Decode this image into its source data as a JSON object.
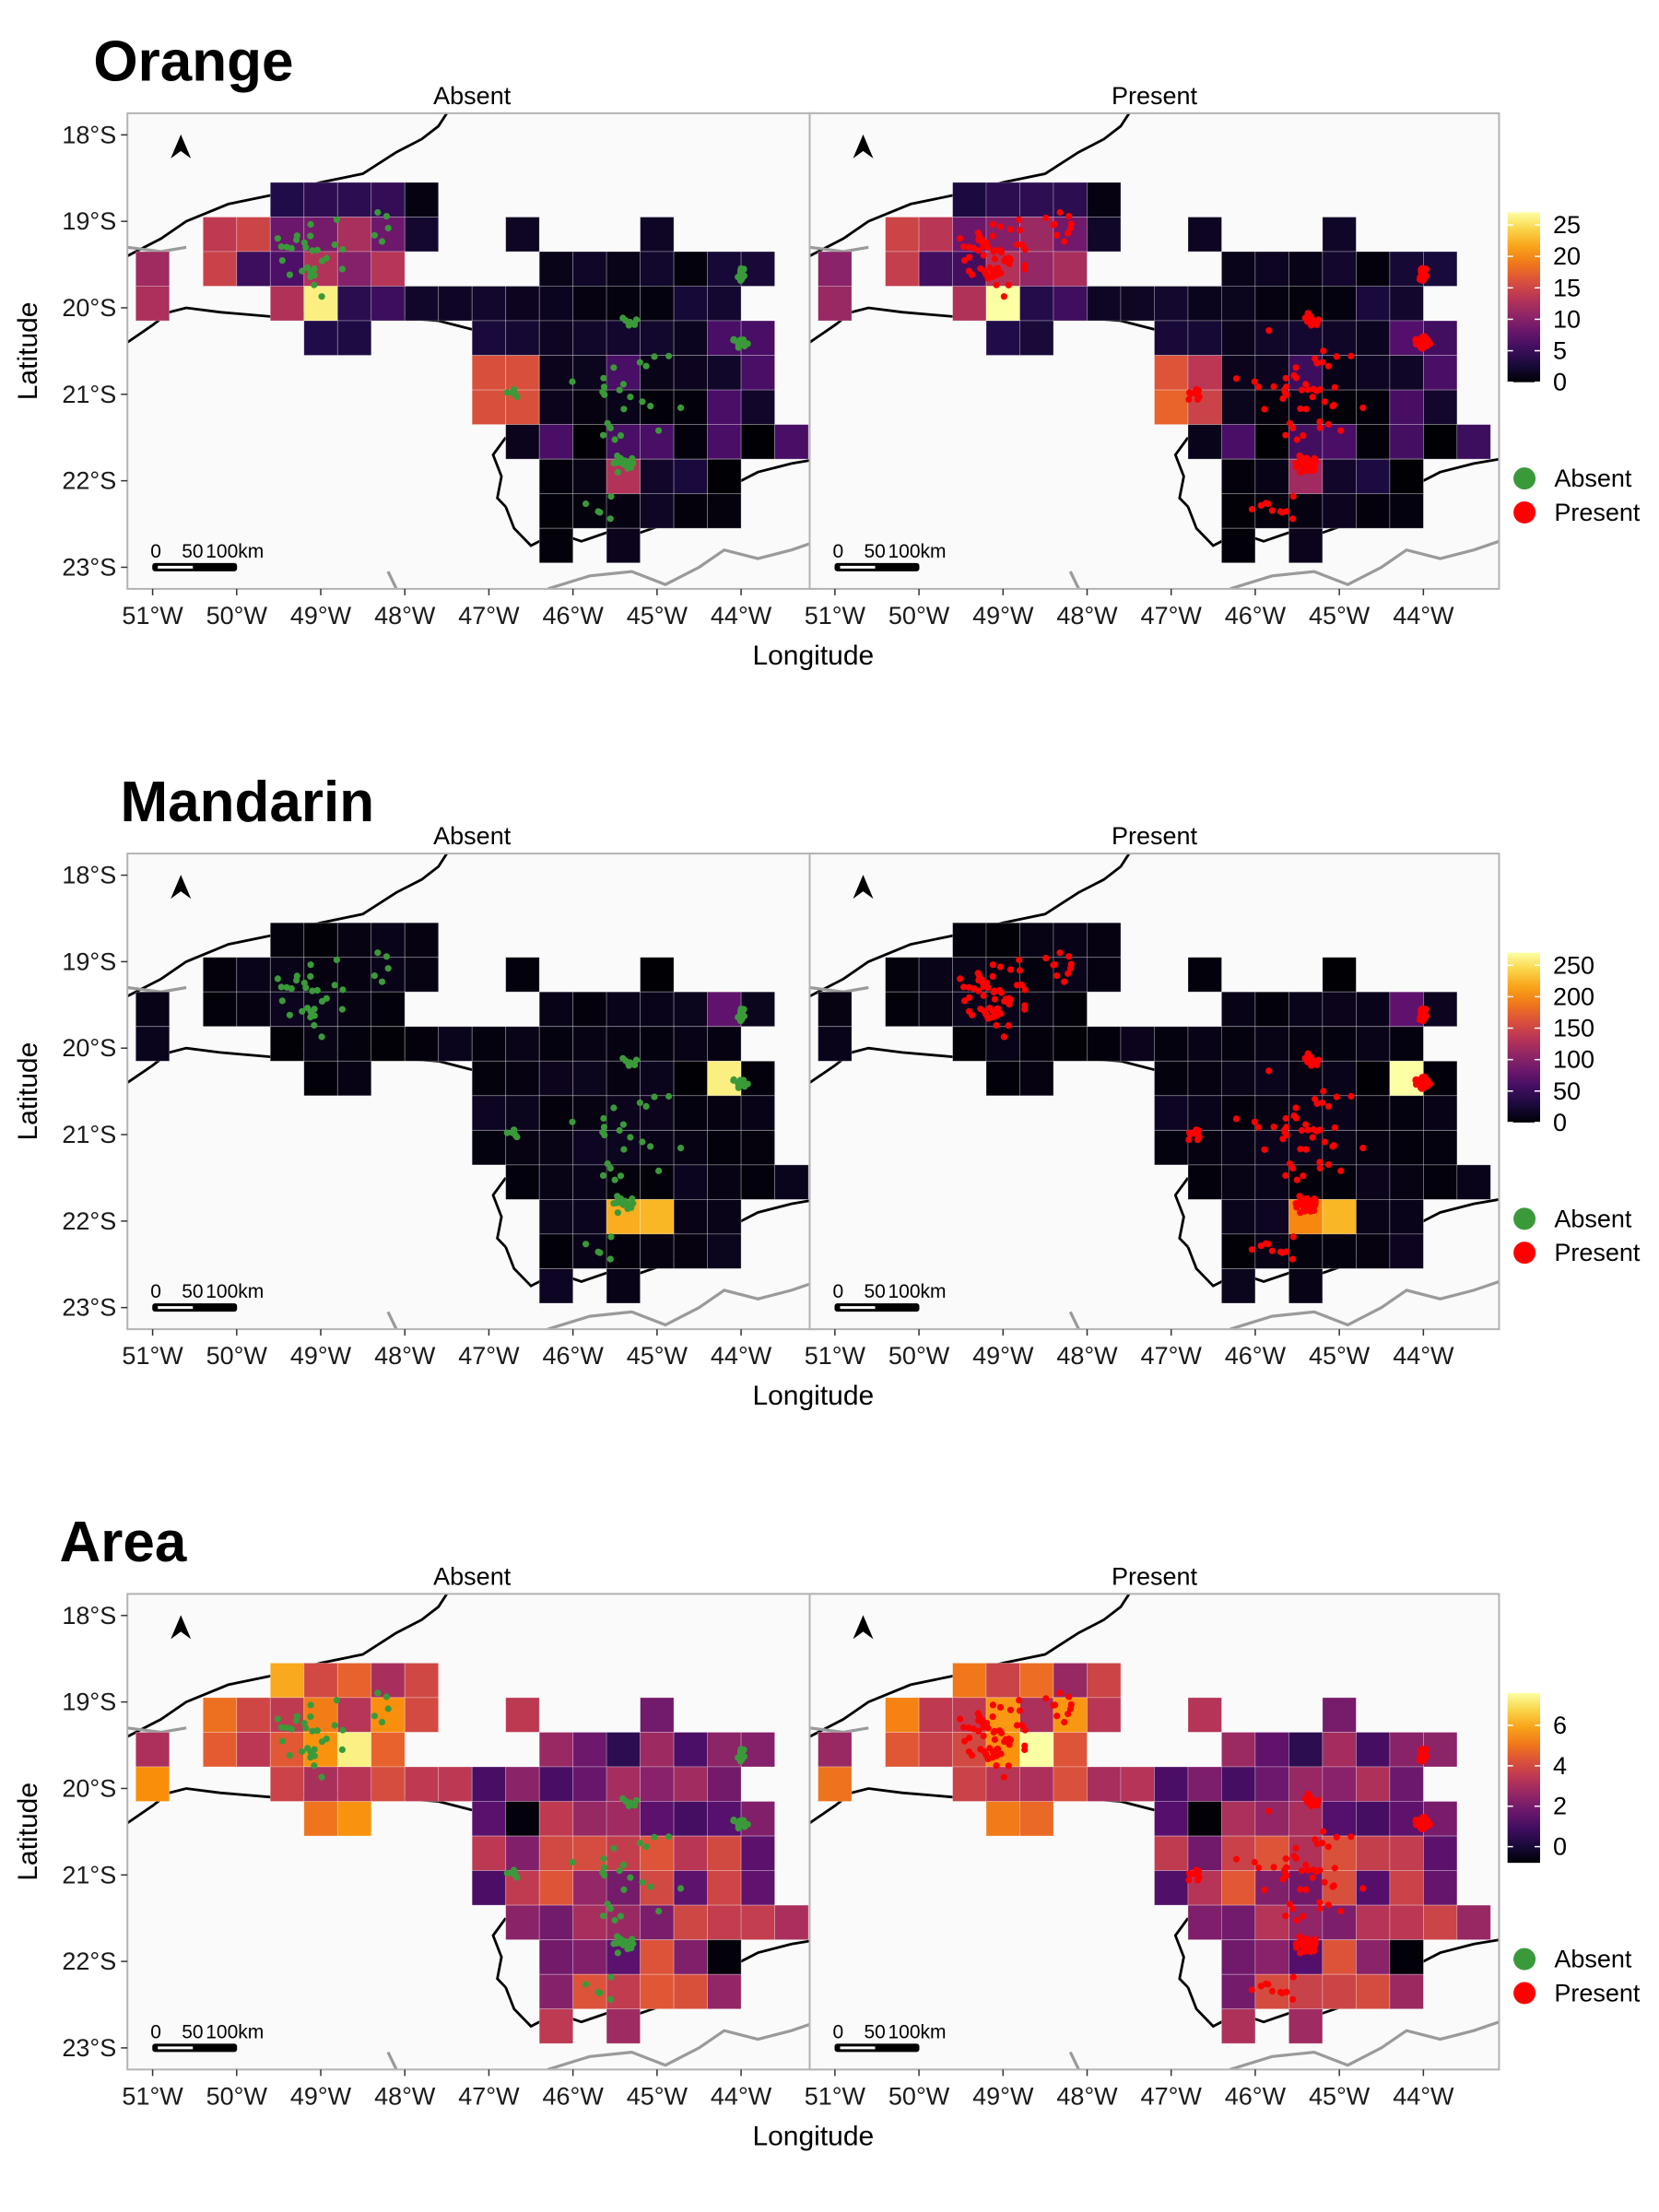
{
  "panel_sections": [
    {
      "id": "orange",
      "title": "Orange",
      "facets": [
        "Absent",
        "Present"
      ],
      "colorbar": {
        "min": 0,
        "max": 27,
        "ticks": [
          0,
          5,
          10,
          15,
          20,
          25
        ]
      },
      "grid_pattern": "orange"
    },
    {
      "id": "mandarin",
      "title": "Mandarin",
      "facets": [
        "Absent",
        "Present"
      ],
      "colorbar": {
        "min": 0,
        "max": 270,
        "ticks": [
          0,
          50,
          100,
          150,
          200,
          250
        ]
      },
      "grid_pattern": "mandarin"
    },
    {
      "id": "area",
      "title": "Area",
      "facets": [
        "Absent",
        "Present"
      ],
      "colorbar": {
        "min": -0.8,
        "max": 7.6,
        "ticks": [
          0,
          2,
          4,
          6
        ]
      },
      "grid_pattern": "area"
    }
  ],
  "x_axis": {
    "title": "Longitude",
    "ticks": [
      "51°W",
      "50°W",
      "49°W",
      "48°W",
      "47°W",
      "46°W",
      "45°W",
      "44°W"
    ],
    "tick_values": [
      -51,
      -50,
      -49,
      -48,
      -47,
      -46,
      -45,
      -44
    ],
    "range": [
      -51.3,
      -43.1
    ]
  },
  "y_axis": {
    "title": "Latitude",
    "ticks": [
      "18°S",
      "19°S",
      "20°S",
      "21°S",
      "22°S",
      "23°S"
    ],
    "tick_values": [
      -18,
      -19,
      -20,
      -21,
      -22,
      -23
    ],
    "range": [
      -23.25,
      -17.75
    ]
  },
  "point_legend": [
    {
      "label": "Absent",
      "color": "#3a9a3a"
    },
    {
      "label": "Present",
      "color": "#ff0000"
    }
  ],
  "scale_bar": {
    "labels": [
      "0",
      "50",
      "100km"
    ]
  },
  "north_arrow": "north-arrow-icon",
  "colors": {
    "absent_points": "#3a9a3a",
    "present_points": "#ff0000",
    "panel_background": "#fafafa",
    "panel_border": "#b3b3b3",
    "state_border": "#000000",
    "neighbor_border": "#9a9a9a",
    "colormap": "inferno"
  },
  "chart_data": {
    "type": "heatmap",
    "cell_size_deg": [
      0.4,
      0.4
    ],
    "note_values": "Grid cells over longitude/latitude colored by per-cell value; points are sampled sites (Absent green, Present red).",
    "panels": [
      {
        "section": "Orange",
        "facets": [
          "Absent",
          "Present"
        ],
        "value_range": [
          0,
          27
        ]
      },
      {
        "section": "Mandarin",
        "facets": [
          "Absent",
          "Present"
        ],
        "value_range": [
          0,
          270
        ]
      },
      {
        "section": "Area",
        "facets": [
          "Absent",
          "Present"
        ],
        "value_range": [
          -0.8,
          7.6
        ]
      }
    ]
  }
}
